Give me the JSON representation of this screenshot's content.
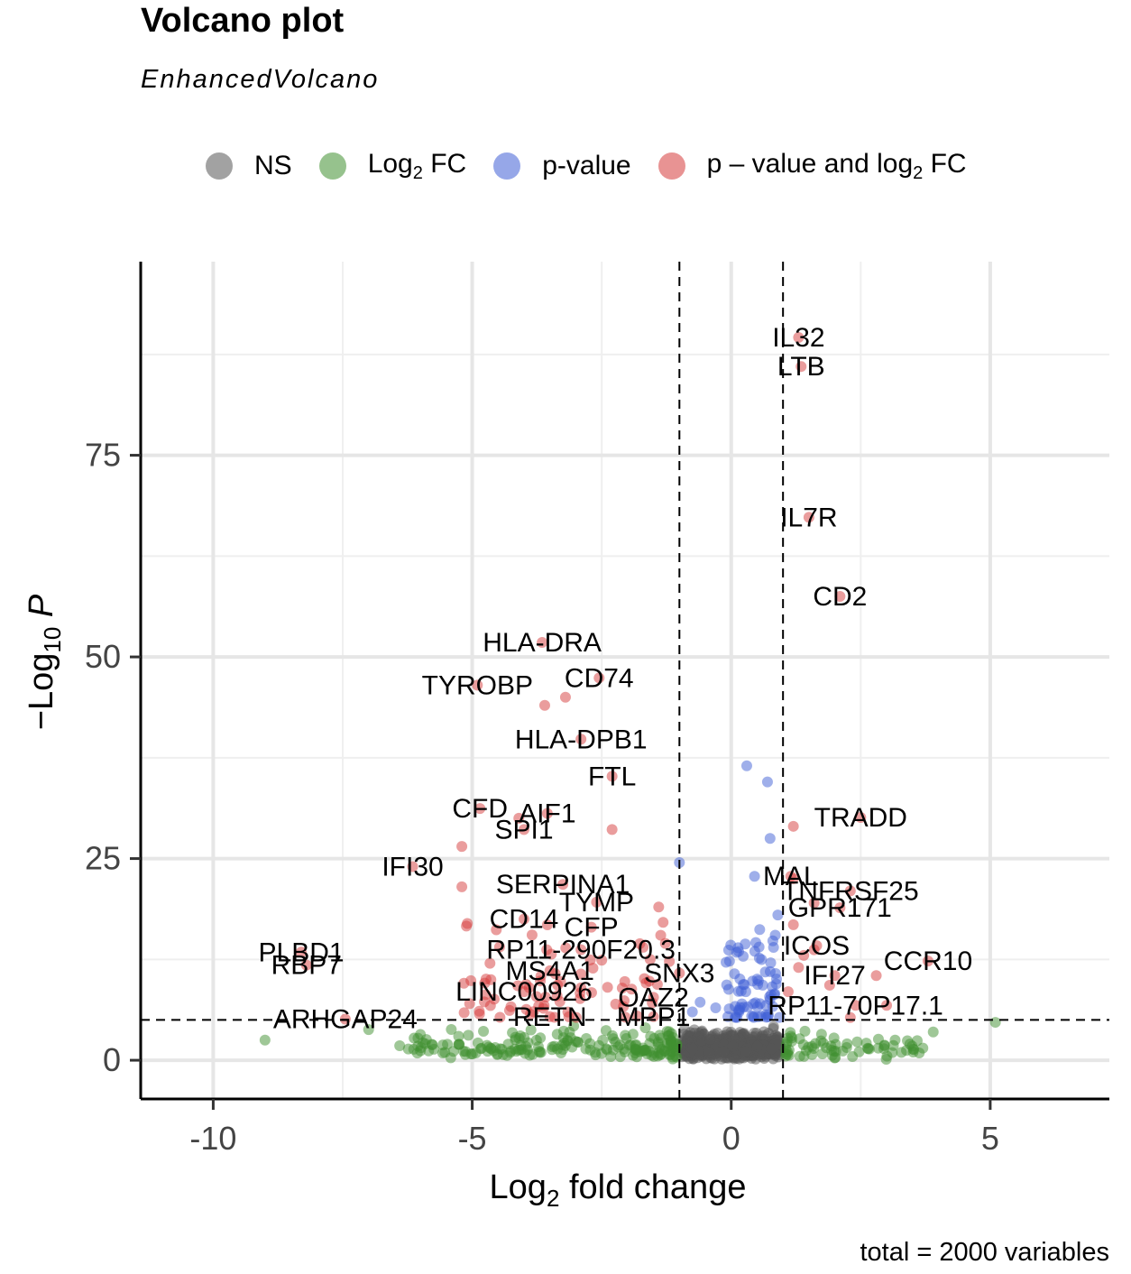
{
  "chart_data": {
    "type": "scatter",
    "title": "Volcano plot",
    "subtitle": "EnhancedVolcano",
    "xlabel": "Log2 fold change",
    "ylabel": "-Log10 P",
    "xlim": [
      -11.4,
      7.3
    ],
    "ylim": [
      -4.8,
      99
    ],
    "x_ticks": [
      -10,
      -5,
      0,
      5
    ],
    "y_ticks": [
      0,
      25,
      50,
      75
    ],
    "fc_cutoff": 1,
    "p_cutoff_log10": 5,
    "caption": "total = 2000 variables",
    "legend": {
      "placement": "top",
      "items": [
        {
          "key": "NS",
          "label": "NS",
          "color": "#555555"
        },
        {
          "key": "FC",
          "label": "Log",
          "sub": "2",
          "suffix": " FC",
          "color": "#3f8f2f"
        },
        {
          "key": "P",
          "label": "p-value",
          "color": "#3f5fd6"
        },
        {
          "key": "P_FC",
          "label": "p – value and log",
          "sub": "2",
          "suffix": " FC",
          "color": "#d63b3b"
        }
      ]
    },
    "labeled_points": [
      {
        "label": "IL32",
        "x": 1.3,
        "y": 89.6
      },
      {
        "label": "LTB",
        "x": 1.35,
        "y": 86.0
      },
      {
        "label": "IL7R",
        "x": 1.5,
        "y": 67.3
      },
      {
        "label": "CD2",
        "x": 2.1,
        "y": 57.5
      },
      {
        "label": "HLA-DRA",
        "x": -3.65,
        "y": 51.8
      },
      {
        "label": "CD74",
        "x": -2.55,
        "y": 47.4
      },
      {
        "label": "TYROBP",
        "x": -4.9,
        "y": 46.5
      },
      {
        "label": "HLA-DPB1",
        "x": -2.9,
        "y": 39.8
      },
      {
        "label": "FTL",
        "x": -2.3,
        "y": 35.2
      },
      {
        "label": "TRADD",
        "x": 2.5,
        "y": 30.1
      },
      {
        "label": "CFD",
        "x": -4.85,
        "y": 31.2
      },
      {
        "label": "AIF1",
        "x": -3.55,
        "y": 30.6
      },
      {
        "label": "SPI1",
        "x": -4.0,
        "y": 28.6
      },
      {
        "label": "IFI30",
        "x": -6.15,
        "y": 24.0
      },
      {
        "label": "MAL",
        "x": 1.15,
        "y": 22.8
      },
      {
        "label": "SERPINA1",
        "x": -3.25,
        "y": 21.8
      },
      {
        "label": "TNFRSF25",
        "x": 2.3,
        "y": 21.0
      },
      {
        "label": "TYMP",
        "x": -2.6,
        "y": 19.6
      },
      {
        "label": "GPR171",
        "x": 2.1,
        "y": 18.9
      },
      {
        "label": "CD14",
        "x": -4.0,
        "y": 17.5
      },
      {
        "label": "CFP",
        "x": -2.7,
        "y": 16.5
      },
      {
        "label": "RP11-290F20.3",
        "x": -2.9,
        "y": 13.7
      },
      {
        "label": "ICOS",
        "x": 1.65,
        "y": 14.2
      },
      {
        "label": "PLBD1",
        "x": -8.3,
        "y": 13.4
      },
      {
        "label": "CCR10",
        "x": 3.8,
        "y": 12.3
      },
      {
        "label": "MS4A1",
        "x": -3.5,
        "y": 11.1
      },
      {
        "label": "SNX3",
        "x": -1.0,
        "y": 10.8
      },
      {
        "label": "RBP7",
        "x": -8.2,
        "y": 11.8
      },
      {
        "label": "IFI27",
        "x": 2.0,
        "y": 10.5
      },
      {
        "label": "LINC00926",
        "x": -4.0,
        "y": 8.5
      },
      {
        "label": "OAZ2",
        "x": -1.5,
        "y": 7.8
      },
      {
        "label": "RP11-70P17.1",
        "x": 2.4,
        "y": 6.8
      },
      {
        "label": "ARHGAP24",
        "x": -7.45,
        "y": 5.1
      },
      {
        "label": "RETN",
        "x": -3.5,
        "y": 5.4
      },
      {
        "label": "MPP1",
        "x": -1.5,
        "y": 5.4
      }
    ]
  }
}
